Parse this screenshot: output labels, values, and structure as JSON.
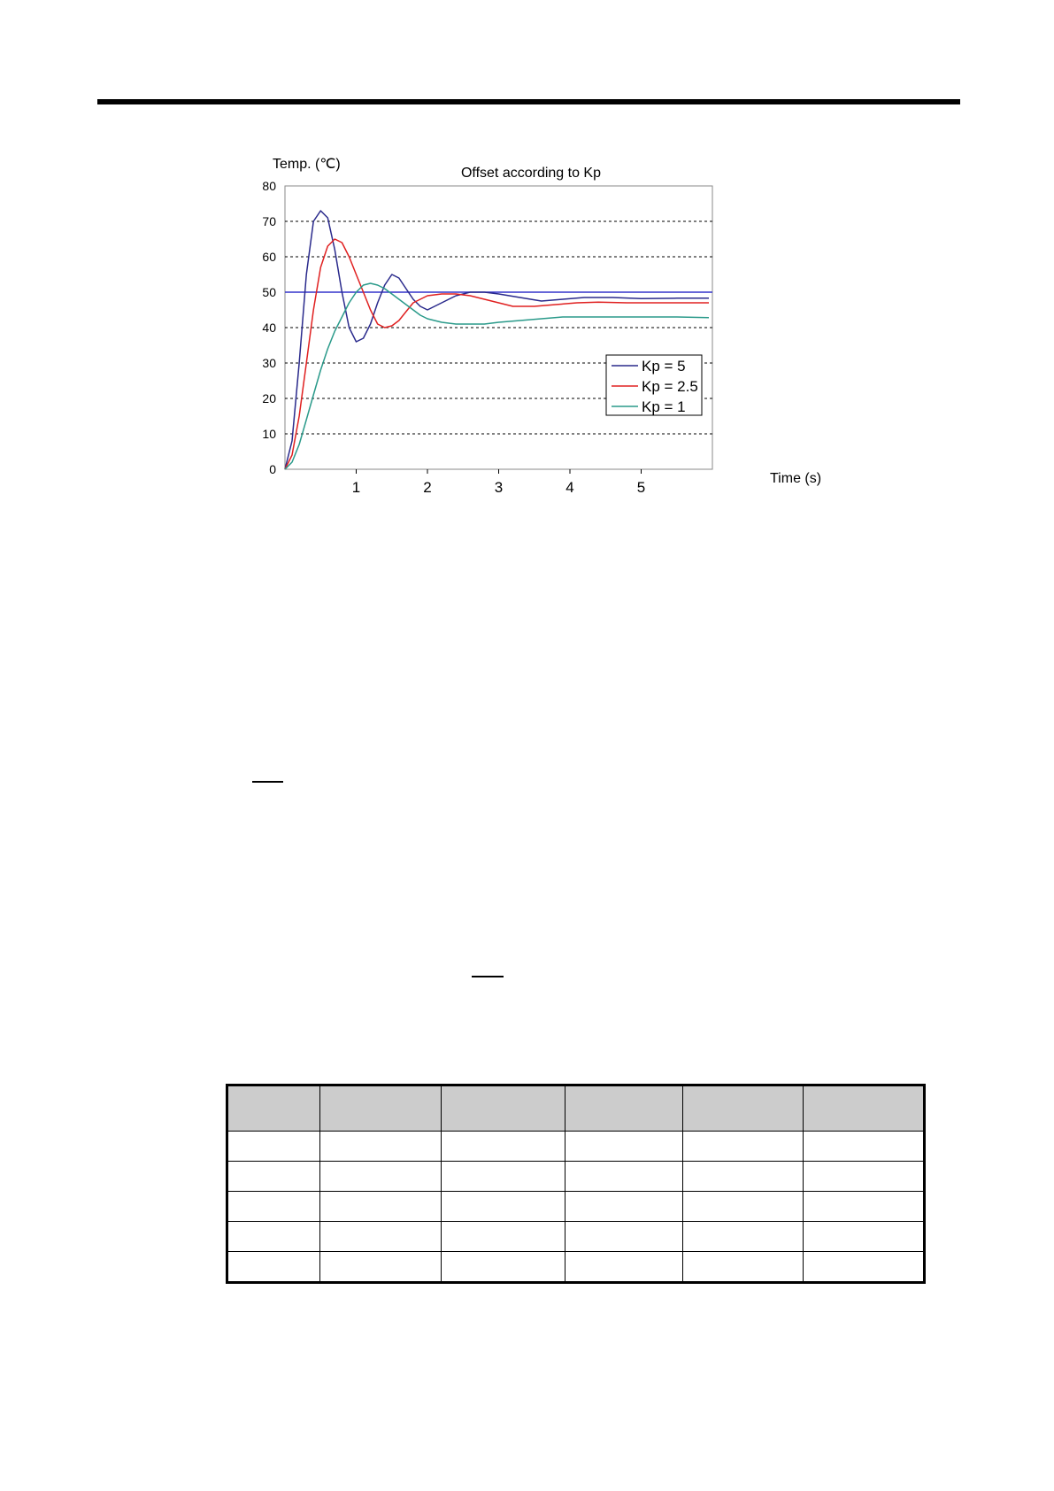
{
  "chart_data": {
    "type": "line",
    "title": "Offset according to Kp",
    "ylabel": "Temp. (℃)",
    "xlabel": "Time (s)",
    "xlim": [
      0,
      6
    ],
    "ylim": [
      0,
      80
    ],
    "yticks": [
      0,
      10,
      20,
      30,
      40,
      50,
      60,
      70,
      80
    ],
    "xticks": [
      1,
      2,
      3,
      4,
      5
    ],
    "grid": "horizontal dashed",
    "legend_position": "bottom-right",
    "setpoint": {
      "y": 50,
      "color": "#3333cc"
    },
    "series": [
      {
        "name": "Kp = 5",
        "color": "#2a2a8c",
        "x": [
          0,
          0.1,
          0.2,
          0.3,
          0.4,
          0.5,
          0.6,
          0.7,
          0.8,
          0.9,
          1.0,
          1.1,
          1.2,
          1.3,
          1.4,
          1.5,
          1.6,
          1.7,
          1.8,
          1.9,
          2.0,
          2.2,
          2.4,
          2.6,
          2.8,
          3.0,
          3.3,
          3.6,
          3.9,
          4.2,
          4.6,
          5.0,
          5.5,
          5.95
        ],
        "y": [
          0,
          8,
          30,
          55,
          70,
          73,
          71,
          62,
          50,
          40,
          36,
          37,
          41,
          47,
          52,
          55,
          54,
          51,
          48,
          46,
          45,
          47,
          49,
          50,
          50,
          49.5,
          48.5,
          47.5,
          48,
          48.5,
          48.5,
          48.2,
          48.3,
          48.3
        ]
      },
      {
        "name": "Kp = 2.5",
        "color": "#e02020",
        "x": [
          0,
          0.1,
          0.2,
          0.3,
          0.4,
          0.5,
          0.6,
          0.7,
          0.8,
          0.9,
          1.0,
          1.1,
          1.2,
          1.3,
          1.4,
          1.5,
          1.6,
          1.7,
          1.8,
          2.0,
          2.2,
          2.4,
          2.6,
          2.8,
          3.0,
          3.2,
          3.5,
          3.8,
          4.1,
          4.4,
          4.8,
          5.2,
          5.6,
          5.95
        ],
        "y": [
          0,
          4,
          15,
          30,
          45,
          57,
          63,
          65,
          64,
          60,
          55,
          50,
          45,
          41,
          40,
          40.5,
          42,
          44.5,
          47,
          49,
          49.5,
          49.5,
          49,
          48,
          47,
          46,
          46,
          46.5,
          47,
          47.2,
          47,
          47,
          47,
          47
        ]
      },
      {
        "name": "Kp = 1",
        "color": "#2a9a8a",
        "x": [
          0,
          0.1,
          0.2,
          0.3,
          0.4,
          0.5,
          0.6,
          0.7,
          0.8,
          0.9,
          1.0,
          1.1,
          1.2,
          1.3,
          1.4,
          1.5,
          1.6,
          1.7,
          1.8,
          1.9,
          2.0,
          2.2,
          2.4,
          2.6,
          2.8,
          3.0,
          3.3,
          3.6,
          3.9,
          4.2,
          4.6,
          5.0,
          5.5,
          5.95
        ],
        "y": [
          0,
          2,
          7,
          14,
          21,
          28,
          34,
          39,
          43,
          47,
          50,
          52,
          52.5,
          52,
          51,
          49.5,
          48,
          46.5,
          45,
          43.5,
          42.5,
          41.5,
          41,
          41,
          41,
          41.5,
          42,
          42.5,
          43,
          43,
          43,
          43,
          43,
          42.8
        ]
      }
    ]
  },
  "table": {
    "header": [
      "",
      "",
      "",
      "",
      "",
      ""
    ],
    "rows": [
      [
        "",
        "",
        "",
        "",
        "",
        ""
      ],
      [
        "",
        "",
        "",
        "",
        "",
        ""
      ],
      [
        "",
        "",
        "",
        "",
        "",
        ""
      ],
      [
        "",
        "",
        "",
        "",
        "",
        ""
      ],
      [
        "",
        "",
        "",
        "",
        "",
        ""
      ]
    ]
  }
}
